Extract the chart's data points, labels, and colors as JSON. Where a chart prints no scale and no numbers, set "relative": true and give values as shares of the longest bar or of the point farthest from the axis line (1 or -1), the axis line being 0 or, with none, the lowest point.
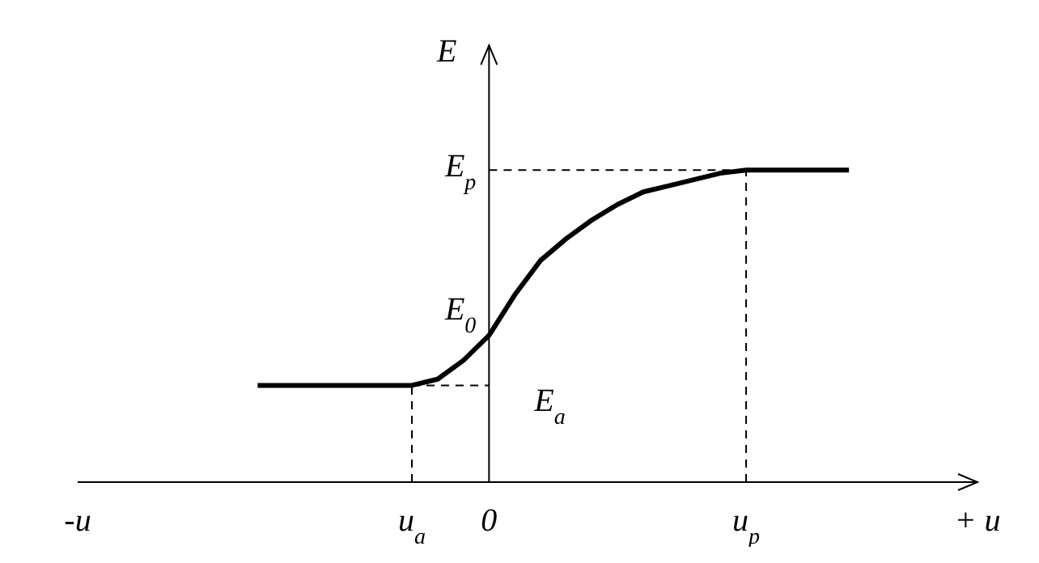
{
  "chart_data": {
    "type": "line",
    "relative": true,
    "xlabel": null,
    "ylabel": "E",
    "marker": "none",
    "categories": [
      "-u",
      null,
      null,
      null,
      null,
      null,
      null,
      null,
      null,
      null,
      null,
      null,
      null,
      "u$_{a}$",
      null,
      null,
      "0",
      null,
      null,
      null,
      null,
      null,
      null,
      null,
      null,
      null,
      "u$_{p}$",
      null,
      null,
      null,
      null,
      null,
      null,
      null,
      null,
      "+ u"
    ],
    "ref_lines": [
      {
        "axis": "x",
        "value": "0"
      }
    ],
    "annotations": [
      "E$_{p}$",
      "E$_{0}$",
      "E$_{a}$"
    ],
    "series": [
      {
        "color": "#000000",
        "line_style": "solid",
        "values": [
          null,
          null,
          null,
          null,
          null,
          null,
          null,
          0.31,
          0.31,
          0.31,
          0.31,
          0.31,
          0.31,
          0.31,
          0.33,
          0.39,
          0.47,
          0.6,
          0.71,
          0.78,
          0.84,
          0.89,
          0.93,
          0.95,
          0.97,
          0.99,
          1,
          1,
          1,
          1,
          1,
          null,
          null,
          null,
          null,
          null
        ]
      },
      {
        "color": "#000000",
        "line_style": "dashed",
        "values": [
          null,
          null,
          null,
          null,
          null,
          null,
          null,
          null,
          null,
          null,
          null,
          null,
          null,
          0.31,
          0.31,
          0.31,
          0.31,
          null,
          null,
          null,
          null,
          null,
          null,
          null,
          null,
          null,
          null,
          null,
          null,
          null,
          null,
          null,
          null,
          null,
          null,
          null
        ]
      },
      {
        "color": "#000000",
        "line_style": "dashed",
        "values": [
          null,
          null,
          null,
          null,
          null,
          null,
          null,
          null,
          null,
          null,
          null,
          null,
          null,
          null,
          null,
          null,
          1,
          1,
          1,
          1,
          1,
          1,
          1,
          1,
          1,
          1,
          1,
          null,
          null,
          null,
          null,
          null,
          null,
          null,
          null,
          null
        ]
      }
    ]
  }
}
